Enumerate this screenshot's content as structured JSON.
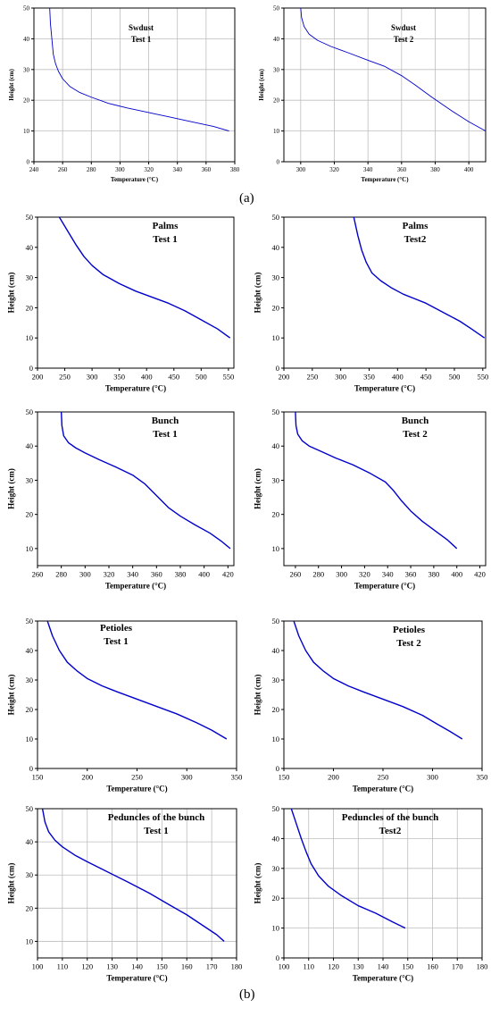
{
  "panel_labels": {
    "a": "(a)",
    "b": "(b)"
  },
  "style": {
    "curve_color": "#0000cc",
    "grid_color": "#bdbdbd",
    "axis_color": "#000000"
  },
  "chart_data": [
    {
      "type": "line",
      "title": [
        "Swdust",
        "Test 1"
      ],
      "xlabel": "Temperature (°C)",
      "ylabel": "Height (cm)",
      "xlim": [
        240,
        380
      ],
      "ylim": [
        0,
        50
      ],
      "xticks": [
        240,
        260,
        280,
        300,
        320,
        340,
        360,
        380
      ],
      "yticks": [
        0,
        10,
        20,
        30,
        40,
        50
      ],
      "grid": true,
      "series": [
        {
          "x": [
            251,
            251.5,
            252.5,
            253.5,
            255,
            257,
            260,
            265,
            272,
            280,
            292,
            305,
            320,
            335,
            350,
            365,
            376
          ],
          "y": [
            50,
            45,
            40,
            35,
            32,
            29.5,
            27,
            24.5,
            22.5,
            21,
            19,
            17.5,
            16,
            14.5,
            13,
            11.5,
            10
          ]
        }
      ]
    },
    {
      "type": "line",
      "title": [
        "Swdust",
        "Test 2"
      ],
      "xlabel": "Temperature (°C)",
      "ylabel": "Height (cm)",
      "xlim": [
        290,
        410
      ],
      "ylim": [
        0,
        50
      ],
      "xticks": [
        300,
        320,
        340,
        360,
        380,
        400
      ],
      "yticks": [
        0,
        10,
        20,
        30,
        40,
        50
      ],
      "grid": true,
      "series": [
        {
          "x": [
            300,
            300.5,
            302,
            305,
            310,
            318,
            328,
            340,
            350,
            360,
            368,
            378,
            390,
            400,
            410
          ],
          "y": [
            50,
            47,
            44,
            41.5,
            39.5,
            37.5,
            35.5,
            33,
            31,
            28,
            25,
            21,
            16.5,
            13,
            10
          ]
        }
      ]
    },
    {
      "type": "line",
      "title": [
        "Palms",
        "Test 1"
      ],
      "xlabel": "Temperature (°C)",
      "ylabel": "Height (cm)",
      "xlim": [
        200,
        560
      ],
      "ylim": [
        0,
        50
      ],
      "xticks": [
        200,
        250,
        300,
        350,
        400,
        450,
        500,
        550
      ],
      "yticks": [
        0,
        10,
        20,
        30,
        40,
        50
      ],
      "grid": false,
      "series": [
        {
          "x": [
            240,
            255,
            270,
            285,
            300,
            320,
            350,
            380,
            410,
            440,
            470,
            500,
            530,
            553
          ],
          "y": [
            50,
            45.5,
            41,
            37,
            34,
            31,
            28,
            25.5,
            23.5,
            21.5,
            19,
            16,
            13,
            10
          ]
        }
      ]
    },
    {
      "type": "line",
      "title": [
        "Palms",
        "Test2"
      ],
      "xlabel": "Temperature (°C)",
      "ylabel": "Height (cm)",
      "xlim": [
        200,
        555
      ],
      "ylim": [
        0,
        50
      ],
      "xticks": [
        200,
        250,
        300,
        350,
        400,
        450,
        500,
        550
      ],
      "yticks": [
        0,
        10,
        20,
        30,
        40,
        50
      ],
      "grid": false,
      "series": [
        {
          "x": [
            323,
            330,
            337,
            345,
            355,
            370,
            390,
            410,
            430,
            450,
            470,
            490,
            510,
            530,
            553
          ],
          "y": [
            50,
            44,
            39,
            35,
            31.5,
            29,
            26.5,
            24.5,
            23,
            21.5,
            19.5,
            17.5,
            15.5,
            13,
            10
          ]
        }
      ]
    },
    {
      "type": "line",
      "title": [
        "Bunch",
        "Test 1"
      ],
      "xlabel": "Temperature (°C)",
      "ylabel": "Height (cm)",
      "xlim": [
        260,
        425
      ],
      "ylim": [
        5,
        50
      ],
      "xticks": [
        260,
        280,
        300,
        320,
        340,
        360,
        380,
        400,
        420
      ],
      "yticks": [
        10,
        20,
        30,
        40,
        50
      ],
      "grid": false,
      "series": [
        {
          "x": [
            280,
            280.5,
            282,
            286,
            292,
            300,
            312,
            325,
            340,
            350,
            360,
            370,
            380,
            392,
            405,
            415,
            422
          ],
          "y": [
            50,
            46,
            43,
            41,
            39.5,
            38,
            36,
            34,
            31.5,
            29,
            25.5,
            22,
            19.5,
            17,
            14.5,
            12,
            10
          ]
        }
      ]
    },
    {
      "type": "line",
      "title": [
        "Bunch",
        "Test 2"
      ],
      "xlabel": "Temperature (°C)",
      "ylabel": "Height (cm)",
      "xlim": [
        250,
        425
      ],
      "ylim": [
        5,
        50
      ],
      "xticks": [
        260,
        280,
        300,
        320,
        340,
        360,
        380,
        400,
        420
      ],
      "yticks": [
        10,
        20,
        30,
        40,
        50
      ],
      "grid": false,
      "series": [
        {
          "x": [
            260,
            260.5,
            262,
            266,
            272,
            282,
            295,
            310,
            325,
            338,
            345,
            352,
            360,
            370,
            382,
            392,
            400
          ],
          "y": [
            50,
            46,
            43.5,
            41.5,
            40,
            38.5,
            36.5,
            34.5,
            32,
            29.5,
            27,
            24,
            21,
            18,
            15,
            12.5,
            10
          ]
        }
      ]
    },
    {
      "type": "line",
      "title": [
        "Petioles",
        "Test 1"
      ],
      "xlabel": "Temperature (°C)",
      "ylabel": "Height (cm)",
      "xlim": [
        150,
        350
      ],
      "ylim": [
        0,
        50
      ],
      "xticks": [
        150,
        200,
        250,
        300,
        350
      ],
      "yticks": [
        0,
        10,
        20,
        30,
        40,
        50
      ],
      "grid": false,
      "series": [
        {
          "x": [
            160,
            165,
            172,
            180,
            190,
            200,
            215,
            230,
            250,
            270,
            290,
            310,
            325,
            340
          ],
          "y": [
            50,
            45,
            40,
            36,
            33,
            30.5,
            28,
            26,
            23.5,
            21,
            18.5,
            15.5,
            13,
            10
          ]
        }
      ]
    },
    {
      "type": "line",
      "title": [
        "Petioles",
        "Test 2"
      ],
      "xlabel": "Temperature (°C)",
      "ylabel": "Height (cm)",
      "xlim": [
        150,
        350
      ],
      "ylim": [
        0,
        50
      ],
      "xticks": [
        150,
        200,
        250,
        300,
        350
      ],
      "yticks": [
        0,
        10,
        20,
        30,
        40,
        50
      ],
      "grid": false,
      "series": [
        {
          "x": [
            160,
            165,
            172,
            180,
            190,
            200,
            215,
            230,
            250,
            270,
            290,
            305,
            318,
            330
          ],
          "y": [
            50,
            45,
            40,
            36,
            33,
            30.5,
            28,
            26,
            23.5,
            21,
            18,
            15,
            12.5,
            10
          ]
        }
      ]
    },
    {
      "type": "line",
      "title": [
        "Peduncles of the bunch",
        "Test 1"
      ],
      "xlabel": "Temperature (°C)",
      "ylabel": "Height (cm)",
      "xlim": [
        100,
        180
      ],
      "ylim": [
        5,
        50
      ],
      "xticks": [
        100,
        110,
        120,
        130,
        140,
        150,
        160,
        170,
        180
      ],
      "yticks": [
        10,
        20,
        30,
        40,
        50
      ],
      "grid": true,
      "series": [
        {
          "x": [
            102,
            103,
            104.5,
            107,
            110,
            115,
            120,
            128,
            136,
            145,
            153,
            160,
            167,
            172,
            175
          ],
          "y": [
            50,
            46,
            43,
            40.5,
            38.5,
            36,
            34,
            31,
            28,
            24.5,
            21,
            18,
            14.5,
            12,
            10
          ]
        }
      ]
    },
    {
      "type": "line",
      "title": [
        "Peduncles of the bunch",
        "Test2"
      ],
      "xlabel": "Temperature (°C)",
      "ylabel": "Height (cm)",
      "xlim": [
        100,
        180
      ],
      "ylim": [
        0,
        50
      ],
      "xticks": [
        100,
        110,
        120,
        130,
        140,
        150,
        160,
        170,
        180
      ],
      "yticks": [
        0,
        10,
        20,
        30,
        40,
        50
      ],
      "grid": true,
      "series": [
        {
          "x": [
            103,
            105,
            107,
            109,
            111,
            114,
            118,
            123,
            130,
            137,
            144,
            149
          ],
          "y": [
            50,
            45,
            40,
            35.5,
            31.5,
            27.5,
            24,
            21,
            17.5,
            15,
            12,
            10
          ]
        }
      ]
    }
  ]
}
